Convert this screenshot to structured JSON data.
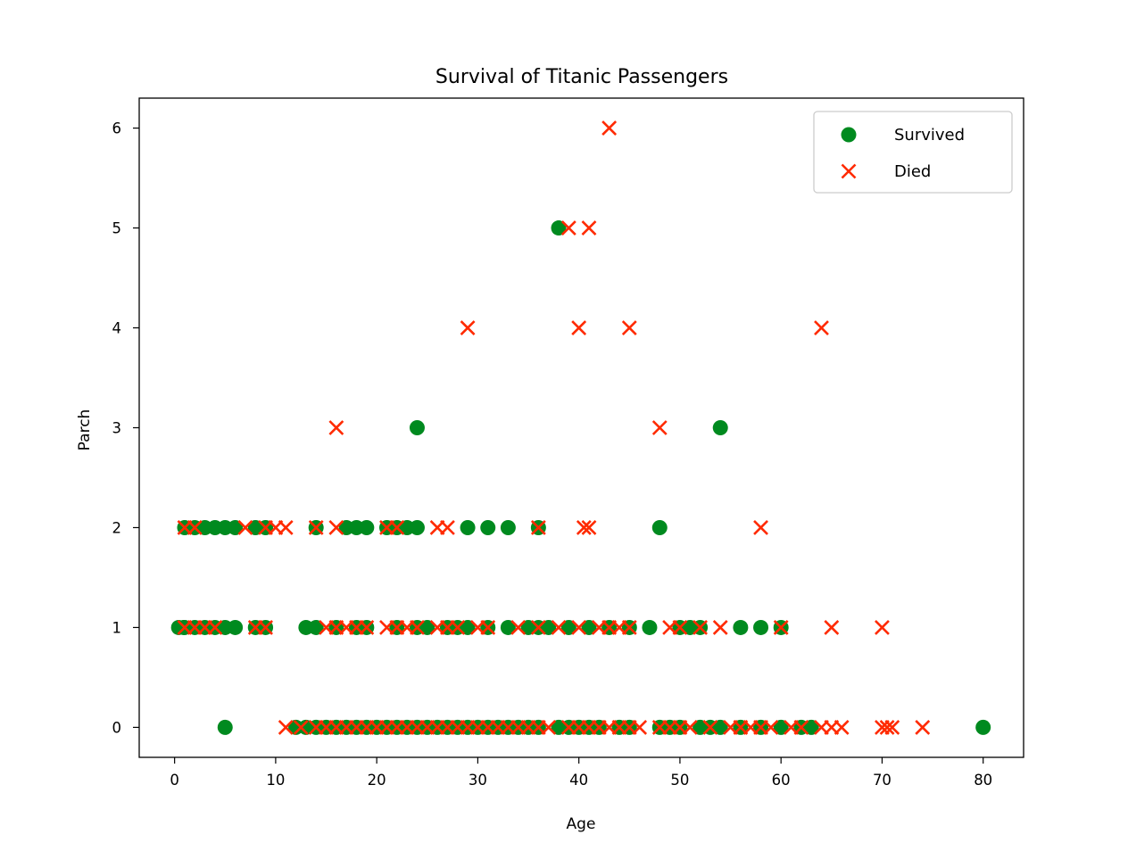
{
  "chart_data": {
    "type": "scatter",
    "title": "Survival of Titanic Passengers",
    "xlabel": "Age",
    "ylabel": "Parch",
    "xlim": [
      -3.5,
      84
    ],
    "ylim": [
      -0.3,
      6.3
    ],
    "xticks": [
      0,
      10,
      20,
      30,
      40,
      50,
      60,
      70,
      80
    ],
    "yticks": [
      0,
      1,
      2,
      3,
      4,
      5,
      6
    ],
    "grid": false,
    "legend_position": "top-right",
    "series": [
      {
        "name": "Survived",
        "marker": "circle",
        "color": "#008a1f",
        "x": [
          5,
          12,
          13,
          14,
          15,
          16,
          17,
          18,
          19,
          20,
          21,
          22,
          23,
          24,
          25,
          26,
          27,
          28,
          29,
          30,
          31,
          32,
          33,
          34,
          35,
          36,
          38,
          39,
          40,
          41,
          42,
          44,
          45,
          48,
          49,
          50,
          52,
          53,
          54,
          56,
          58,
          60,
          62,
          63,
          80,
          0.4,
          0.9,
          1,
          2,
          3,
          4,
          5,
          6,
          8,
          9,
          13,
          14,
          16,
          18,
          19,
          22,
          24,
          25,
          27,
          28,
          29,
          31,
          33,
          35,
          36,
          37,
          39,
          41,
          43,
          45,
          47,
          50,
          51,
          52,
          56,
          58,
          60,
          1,
          2,
          3,
          4,
          5,
          6,
          8,
          9,
          14,
          17,
          18,
          19,
          21,
          22,
          23,
          24,
          29,
          31,
          33,
          36,
          48,
          24,
          54,
          38
        ],
        "y": [
          0,
          0,
          0,
          0,
          0,
          0,
          0,
          0,
          0,
          0,
          0,
          0,
          0,
          0,
          0,
          0,
          0,
          0,
          0,
          0,
          0,
          0,
          0,
          0,
          0,
          0,
          0,
          0,
          0,
          0,
          0,
          0,
          0,
          0,
          0,
          0,
          0,
          0,
          0,
          0,
          0,
          0,
          0,
          0,
          0,
          1,
          1,
          1,
          1,
          1,
          1,
          1,
          1,
          1,
          1,
          1,
          1,
          1,
          1,
          1,
          1,
          1,
          1,
          1,
          1,
          1,
          1,
          1,
          1,
          1,
          1,
          1,
          1,
          1,
          1,
          1,
          1,
          1,
          1,
          1,
          1,
          1,
          2,
          2,
          2,
          2,
          2,
          2,
          2,
          2,
          2,
          2,
          2,
          2,
          2,
          2,
          2,
          2,
          2,
          2,
          2,
          2,
          2,
          3,
          3,
          5
        ]
      },
      {
        "name": "Died",
        "marker": "x",
        "color": "#ff2a00",
        "x": [
          11,
          12.5,
          14,
          15,
          16,
          17,
          18,
          19,
          20,
          21,
          22,
          23,
          24,
          25,
          26,
          27,
          28,
          29,
          30,
          31,
          32,
          33,
          34,
          35,
          36,
          37,
          39,
          40,
          41,
          42,
          43,
          44,
          45,
          46,
          48,
          49,
          50,
          51,
          53,
          55,
          56,
          57,
          58,
          59,
          61,
          62,
          64,
          65,
          66,
          70,
          70.5,
          71,
          74,
          1,
          2,
          3,
          4,
          8,
          9,
          15,
          16,
          17,
          18,
          19,
          21,
          22,
          23,
          24,
          26,
          27,
          28,
          30,
          31,
          34,
          36,
          38,
          40,
          42,
          43,
          44,
          45,
          49,
          50,
          52,
          54,
          60,
          65,
          70,
          1,
          2,
          7,
          9,
          10,
          11,
          14,
          16,
          21,
          22,
          26,
          27,
          36,
          40.5,
          41,
          58,
          16,
          48,
          29,
          40,
          45,
          64,
          39,
          41,
          43
        ],
        "y": [
          0,
          0,
          0,
          0,
          0,
          0,
          0,
          0,
          0,
          0,
          0,
          0,
          0,
          0,
          0,
          0,
          0,
          0,
          0,
          0,
          0,
          0,
          0,
          0,
          0,
          0,
          0,
          0,
          0,
          0,
          0,
          0,
          0,
          0,
          0,
          0,
          0,
          0,
          0,
          0,
          0,
          0,
          0,
          0,
          0,
          0,
          0,
          0,
          0,
          0,
          0,
          0,
          0,
          1,
          1,
          1,
          1,
          1,
          1,
          1,
          1,
          1,
          1,
          1,
          1,
          1,
          1,
          1,
          1,
          1,
          1,
          1,
          1,
          1,
          1,
          1,
          1,
          1,
          1,
          1,
          1,
          1,
          1,
          1,
          1,
          1,
          1,
          1,
          2,
          2,
          2,
          2,
          2,
          2,
          2,
          2,
          2,
          2,
          2,
          2,
          2,
          2,
          2,
          2,
          3,
          3,
          4,
          4,
          4,
          4,
          5,
          5,
          6
        ]
      }
    ]
  }
}
